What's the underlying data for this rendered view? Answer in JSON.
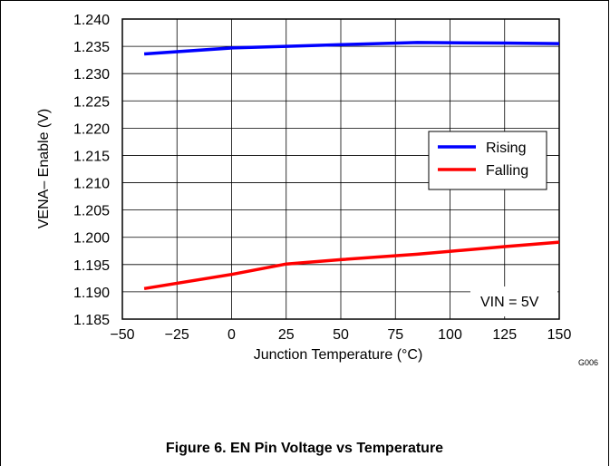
{
  "chart_data": {
    "type": "line",
    "xlabel": "Junction Temperature (°C)",
    "ylabel": "VENA– Enable (V)",
    "xlim": [
      -50,
      150
    ],
    "ylim": [
      1.185,
      1.24
    ],
    "x_ticks": [
      "−50",
      "−25",
      "0",
      "25",
      "50",
      "75",
      "100",
      "125",
      "150"
    ],
    "y_ticks": [
      "1.240",
      "1.235",
      "1.230",
      "1.225",
      "1.220",
      "1.215",
      "1.210",
      "1.205",
      "1.200",
      "1.195",
      "1.190",
      "1.185"
    ],
    "grid": true,
    "legend_position": "center-right",
    "series": [
      {
        "name": "Rising",
        "color": "#0000ff",
        "x": [
          -40,
          0,
          25,
          50,
          85,
          125,
          150
        ],
        "y": [
          1.2336,
          1.2347,
          1.235,
          1.2353,
          1.2357,
          1.2356,
          1.2355
        ]
      },
      {
        "name": "Falling",
        "color": "#ff0000",
        "x": [
          -40,
          0,
          25,
          50,
          85,
          125,
          150
        ],
        "y": [
          1.1906,
          1.1932,
          1.1951,
          1.1959,
          1.1969,
          1.1983,
          1.1991
        ]
      }
    ],
    "annotation": "VIN = 5V",
    "figure_id": "G006"
  },
  "caption": "Figure 6. EN Pin Voltage vs Temperature"
}
